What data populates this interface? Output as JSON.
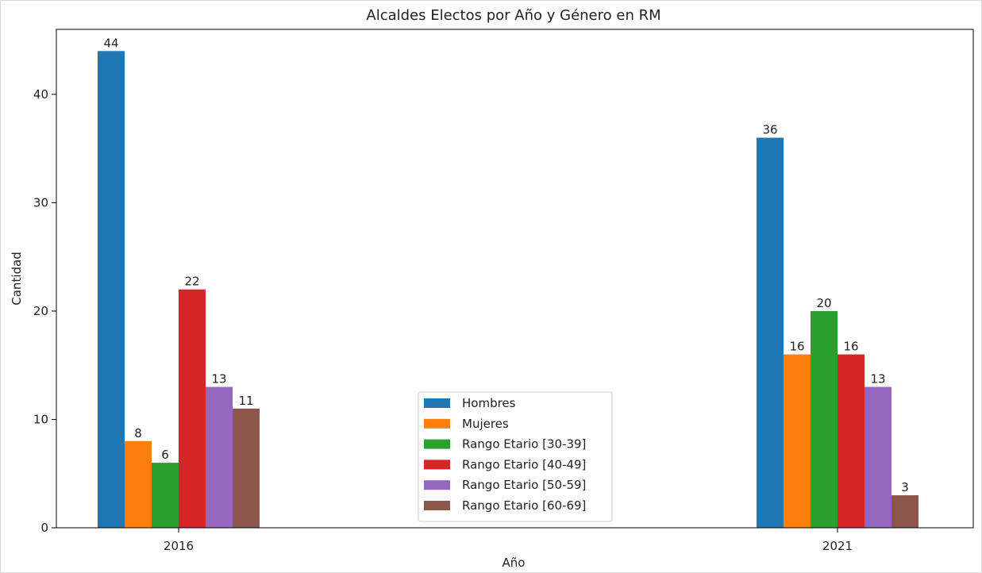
{
  "chart_data": {
    "type": "bar",
    "title": "Alcaldes Electos por Año y Género en RM",
    "xlabel": "Año",
    "ylabel": "Cantidad",
    "categories": [
      "2016",
      "2021"
    ],
    "ylim": [
      0,
      46
    ],
    "yticks": [
      0,
      10,
      20,
      30,
      40
    ],
    "grid": false,
    "legend_position": "bottom-center",
    "series": [
      {
        "name": "Hombres",
        "values": [
          44,
          36
        ],
        "color": "#1f77b4"
      },
      {
        "name": "Mujeres",
        "values": [
          8,
          16
        ],
        "color": "#ff7f0e"
      },
      {
        "name": "Rango Etario [30-39]",
        "values": [
          6,
          20
        ],
        "color": "#2ca02c"
      },
      {
        "name": "Rango Etario [40-49]",
        "values": [
          22,
          16
        ],
        "color": "#d62728"
      },
      {
        "name": "Rango Etario [50-59]",
        "values": [
          13,
          13
        ],
        "color": "#9467bd"
      },
      {
        "name": "Rango Etario [60-69]",
        "values": [
          11,
          3
        ],
        "color": "#8c564b"
      }
    ]
  }
}
